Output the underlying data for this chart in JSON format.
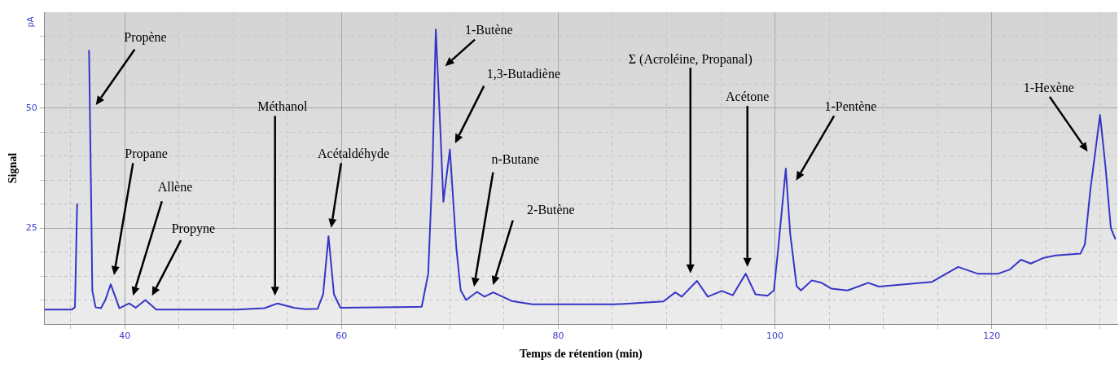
{
  "chart_data": {
    "type": "line",
    "xlabel": "Temps de rétention (min)",
    "ylabel": "Signal",
    "xlim": [
      32.6,
      131.6
    ],
    "xticks": [
      {
        "value": 35,
        "label": null
      },
      40,
      {
        "value": 45,
        "label": null
      },
      {
        "value": 50,
        "label": null
      },
      {
        "value": 55,
        "label": null
      },
      60,
      {
        "value": 65,
        "label": null
      },
      {
        "value": 70,
        "label": null
      },
      {
        "value": 75,
        "label": null
      },
      80,
      {
        "value": 85,
        "label": null
      },
      {
        "value": 90,
        "label": null
      },
      {
        "value": 95,
        "label": null
      },
      100,
      {
        "value": 105,
        "label": null
      },
      {
        "value": 110,
        "label": null
      },
      {
        "value": 115,
        "label": null
      },
      120,
      {
        "value": 125,
        "label": null
      },
      {
        "value": 130,
        "label": null
      }
    ],
    "ylim": [
      5,
      70
    ],
    "yticks": [
      {
        "value": 10,
        "label": null
      },
      {
        "value": 15,
        "label": null
      },
      {
        "value": 20,
        "label": null
      },
      25,
      {
        "value": 30,
        "label": null
      },
      {
        "value": 35,
        "label": null
      },
      {
        "value": 40,
        "label": null
      },
      {
        "value": 45,
        "label": null
      },
      50,
      {
        "value": 55,
        "label": null
      },
      {
        "value": 60,
        "label": null
      },
      {
        "value": 65,
        "label": null
      }
    ],
    "grid": true,
    "legend": false,
    "marker": "none",
    "line_style": "solid",
    "series": [
      {
        "color": "#3535c8",
        "x": [
          32.6,
          35.1,
          35.4,
          35.6,
          35.7,
          36.3,
          36.6,
          36.7,
          36.9,
          37.0,
          37.3,
          37.8,
          38.2,
          38.7,
          39.5,
          40.4,
          41.0,
          41.9,
          42.9,
          50.3,
          52.9,
          54.1,
          55.6,
          56.7,
          57.8,
          58.3,
          58.8,
          59.3,
          59.9,
          67.4,
          68.0,
          68.4,
          68.7,
          69.1,
          69.4,
          70.0,
          70.6,
          71.0,
          71.5,
          72.5,
          73.2,
          74.0,
          75.7,
          77.6,
          85.2,
          89.7,
          90.8,
          91.4,
          92.8,
          93.8,
          95.1,
          96.1,
          97.3,
          98.2,
          99.3,
          99.9,
          100.3,
          101.0,
          101.4,
          102.0,
          102.4,
          103.4,
          104.3,
          105.2,
          106.7,
          108.6,
          109.6,
          114.5,
          116.9,
          118.7,
          120.6,
          121.7,
          122.7,
          123.6,
          124.8,
          125.9,
          128.2,
          128.6,
          129.1,
          130.0,
          130.5,
          131.0,
          131.4
        ],
        "values": [
          8,
          8,
          8.5,
          30,
          null,
          null,
          null,
          62,
          30,
          12,
          8.5,
          8.3,
          10,
          13.3,
          8.3,
          9.3,
          8.4,
          10,
          8,
          8,
          8.3,
          9.3,
          8.4,
          8.1,
          8.2,
          11.2,
          23.3,
          11.2,
          8.4,
          8.6,
          15.5,
          38,
          66.4,
          46.5,
          30.5,
          41.4,
          20.7,
          12,
          10,
          11.7,
          10.7,
          11.6,
          9.8,
          9.1,
          9.1,
          9.7,
          11.6,
          10.7,
          14,
          10.7,
          11.9,
          11,
          15.5,
          11.2,
          10.9,
          12,
          20.7,
          37.4,
          24,
          12.9,
          12,
          14.1,
          13.6,
          12.4,
          12,
          13.6,
          12.8,
          13.8,
          16.9,
          15.5,
          15.5,
          16.4,
          18.4,
          17.6,
          18.8,
          19.3,
          19.7,
          21.6,
          32.8,
          48.6,
          37.9,
          25,
          22.8
        ]
      }
    ],
    "annotations": [
      "pA",
      "Propène",
      "Propane",
      "Allène",
      "Propyne",
      "Méthanol",
      "Acétaldéhyde",
      "1-Butène",
      "1,3-Butadiène",
      "n-Butane",
      "2-Butène",
      "Σ (Acroléine, Propanal)",
      "Acétone",
      "1-Pentène",
      "1-Hexène"
    ]
  }
}
